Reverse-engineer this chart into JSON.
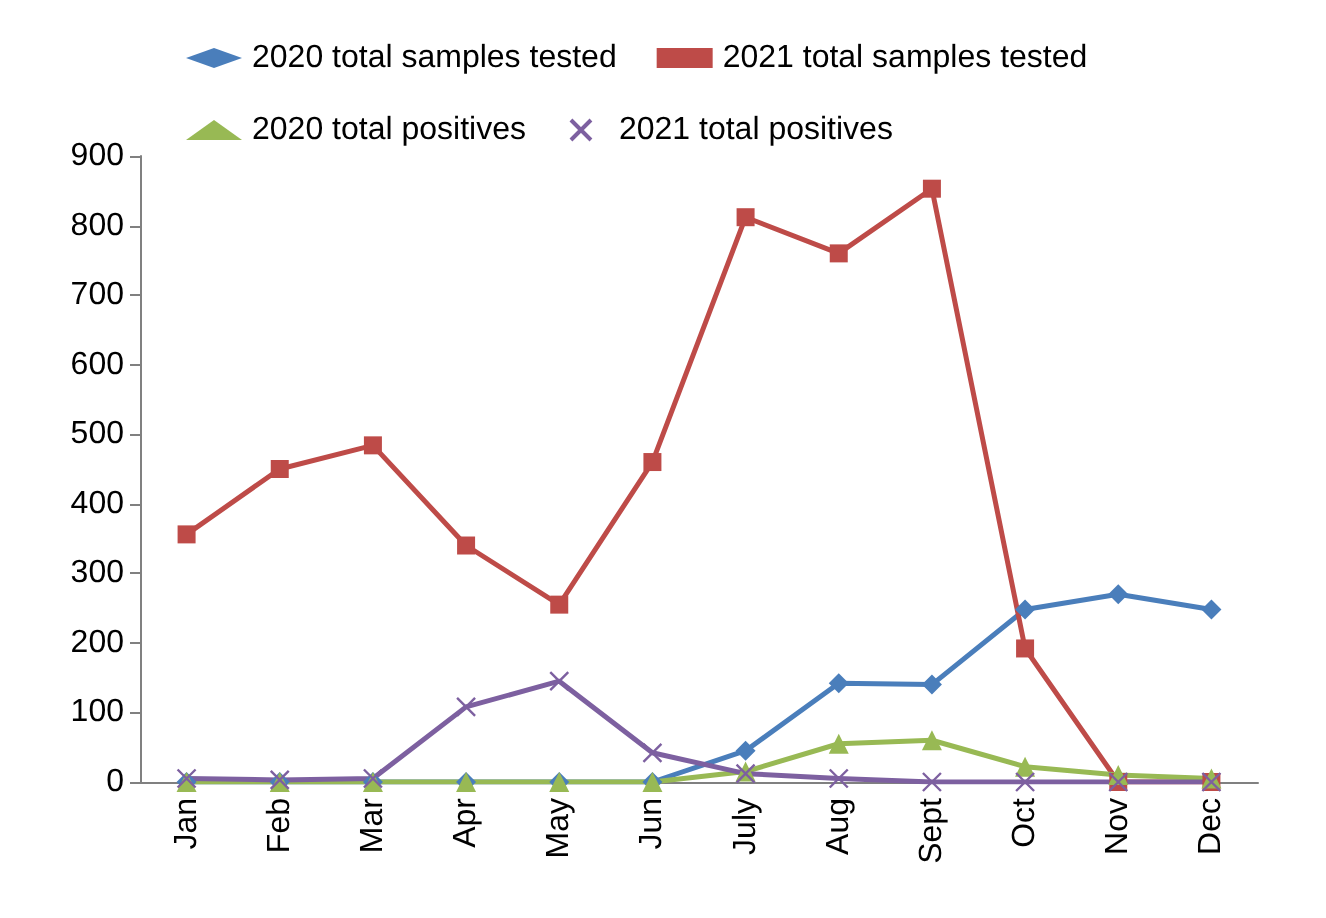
{
  "chart_data": {
    "type": "line",
    "categories": [
      "Jan",
      "Feb",
      "Mar",
      "Apr",
      "May",
      "Jun",
      "July",
      "Aug",
      "Sept",
      "Oct",
      "Nov",
      "Dec"
    ],
    "series": [
      {
        "name": "2020 total samples tested",
        "color": "#4a7ebb",
        "marker": "diamond",
        "values": [
          0,
          0,
          0,
          0,
          0,
          0,
          45,
          142,
          140,
          248,
          270,
          248
        ]
      },
      {
        "name": "2021 total samples tested",
        "color": "#be4b48",
        "marker": "square",
        "values": [
          356,
          450,
          484,
          340,
          255,
          460,
          812,
          760,
          853,
          192,
          0,
          0
        ]
      },
      {
        "name": "2020 total positives",
        "color": "#98b954",
        "marker": "triangle",
        "values": [
          0,
          0,
          0,
          0,
          0,
          0,
          15,
          55,
          60,
          22,
          10,
          5
        ]
      },
      {
        "name": "2021 total positives",
        "color": "#7d60a0",
        "marker": "cross",
        "values": [
          5,
          3,
          5,
          108,
          145,
          42,
          12,
          5,
          0,
          0,
          0,
          0
        ]
      }
    ],
    "ylim": [
      0,
      900
    ],
    "yticks": [
      0,
      100,
      200,
      300,
      400,
      500,
      600,
      700,
      800,
      900
    ],
    "grid": false,
    "legend": "top",
    "line_style": "solid"
  }
}
